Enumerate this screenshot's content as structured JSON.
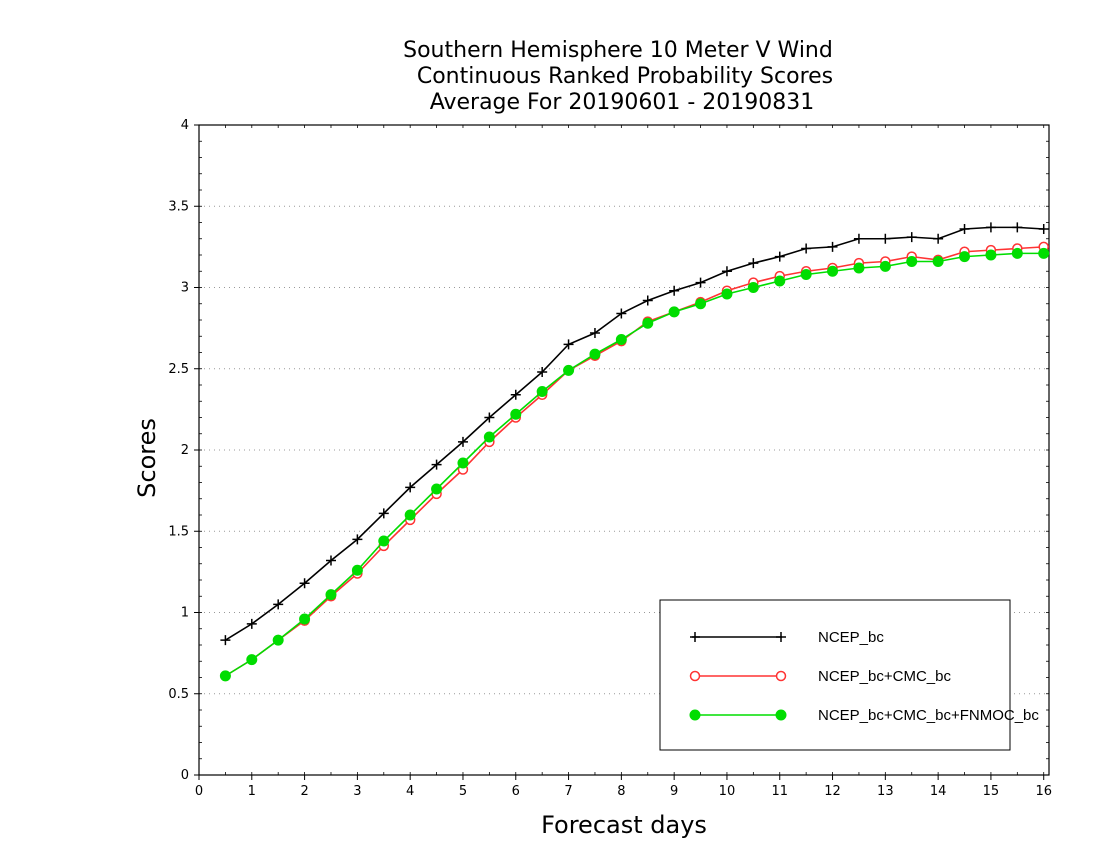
{
  "chart_data": {
    "type": "line",
    "title": [
      "Southern Hemisphere 10 Meter V Wind",
      "Continuous Ranked Probability Scores",
      "Average For 20190601 - 20190831"
    ],
    "xlabel": "Forecast days",
    "ylabel": "Scores",
    "xlim": [
      0,
      16.1
    ],
    "ylim": [
      0,
      4
    ],
    "xticks": [
      "0",
      "1",
      "2",
      "3",
      "4",
      "5",
      "6",
      "7",
      "8",
      "9",
      "10",
      "11",
      "12",
      "13",
      "14",
      "15",
      "16"
    ],
    "yticks": [
      "0",
      "0.5",
      "1",
      "1.5",
      "2",
      "2.5",
      "3",
      "3.5",
      "4"
    ],
    "grid": "horizontal-dotted",
    "legend_position": "bottom-right",
    "x": [
      0.5,
      1,
      1.5,
      2,
      2.5,
      3,
      3.5,
      4,
      4.5,
      5,
      5.5,
      6,
      6.5,
      7,
      7.5,
      8,
      8.5,
      9,
      9.5,
      10,
      10.5,
      11,
      11.5,
      12,
      12.5,
      13,
      13.5,
      14,
      14.5,
      15,
      15.5,
      16
    ],
    "series": [
      {
        "name": "NCEP_bc",
        "color": "#000000",
        "marker": "plus",
        "values": [
          0.83,
          0.93,
          1.05,
          1.18,
          1.32,
          1.45,
          1.61,
          1.77,
          1.91,
          2.05,
          2.2,
          2.34,
          2.48,
          2.65,
          2.72,
          2.84,
          2.92,
          2.98,
          3.03,
          3.1,
          3.15,
          3.19,
          3.24,
          3.25,
          3.3,
          3.3,
          3.31,
          3.3,
          3.36,
          3.37,
          3.37,
          3.36
        ]
      },
      {
        "name": "NCEP_bc+CMC_bc",
        "color": "#ff3333",
        "marker": "open-circle",
        "values": [
          0.61,
          0.71,
          0.83,
          0.95,
          1.1,
          1.24,
          1.41,
          1.57,
          1.73,
          1.88,
          2.05,
          2.2,
          2.34,
          2.49,
          2.58,
          2.67,
          2.79,
          2.85,
          2.91,
          2.98,
          3.03,
          3.07,
          3.1,
          3.12,
          3.15,
          3.16,
          3.19,
          3.17,
          3.22,
          3.23,
          3.24,
          3.25
        ]
      },
      {
        "name": "NCEP_bc+CMC_bc+FNMOC_bc",
        "color": "#00dd00",
        "marker": "filled-circle",
        "values": [
          0.61,
          0.71,
          0.83,
          0.96,
          1.11,
          1.26,
          1.44,
          1.6,
          1.76,
          1.92,
          2.08,
          2.22,
          2.36,
          2.49,
          2.59,
          2.68,
          2.78,
          2.85,
          2.9,
          2.96,
          3.0,
          3.04,
          3.08,
          3.1,
          3.12,
          3.13,
          3.16,
          3.16,
          3.19,
          3.2,
          3.21,
          3.21
        ]
      }
    ]
  }
}
